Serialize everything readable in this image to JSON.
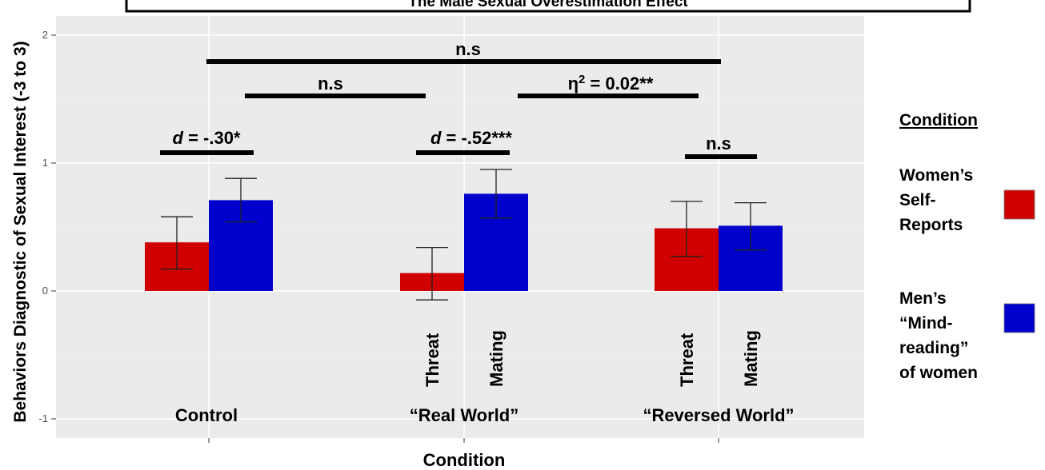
{
  "chart_data": {
    "type": "bar",
    "title": "The Male Sexual Overestimation Effect",
    "xlabel": "Condition",
    "ylabel": "Behaviors Diagnostic of Sexual Interest (-3 to 3)",
    "ylim": [
      -1.1,
      2.1
    ],
    "yticks": [
      -1,
      0,
      1,
      2
    ],
    "grid": true,
    "groups": [
      {
        "label": "Control",
        "bars": [
          {
            "series": 0,
            "value": 0.38,
            "err_low": 0.17,
            "err_high": 0.58,
            "sublabel": ""
          },
          {
            "series": 1,
            "value": 0.71,
            "err_low": 0.54,
            "err_high": 0.88,
            "sublabel": ""
          }
        ]
      },
      {
        "label": "“Real World”",
        "bars": [
          {
            "series": 0,
            "value": 0.14,
            "err_low": -0.07,
            "err_high": 0.34,
            "sublabel": "Threat"
          },
          {
            "series": 1,
            "value": 0.76,
            "err_low": 0.57,
            "err_high": 0.95,
            "sublabel": "Mating"
          }
        ]
      },
      {
        "label": "“Reversed World”",
        "bars": [
          {
            "series": 0,
            "value": 0.49,
            "err_low": 0.27,
            "err_high": 0.7,
            "sublabel": "Threat"
          },
          {
            "series": 1,
            "value": 0.51,
            "err_low": 0.32,
            "err_high": 0.69,
            "sublabel": "Mating"
          }
        ]
      }
    ],
    "series": [
      {
        "name_lines": [
          "Women’s",
          "Self-",
          "Reports"
        ],
        "color": "#d00000"
      },
      {
        "name_lines": [
          "Men’s",
          "“Mind-",
          "reading”",
          "of women"
        ],
        "color": "#0000cc"
      }
    ],
    "legend_title": "Condition",
    "legend_position": "right",
    "annotations": [
      {
        "level": "top",
        "label": "n.s",
        "from_group": 0,
        "to_group": 2
      },
      {
        "level": "mid-left",
        "label": "n.s",
        "from_group": 0,
        "to_group": 1
      },
      {
        "level": "mid-right",
        "label": "η2 = 0.02**",
        "from_group": 1,
        "to_group": 2
      },
      {
        "level": "within",
        "prefix": "d",
        "label": " = -.30*",
        "group": 0
      },
      {
        "level": "within",
        "prefix": "d",
        "label": " = -.52***",
        "group": 1
      },
      {
        "level": "within",
        "prefix": "",
        "label": "n.s",
        "group": 2
      }
    ]
  }
}
